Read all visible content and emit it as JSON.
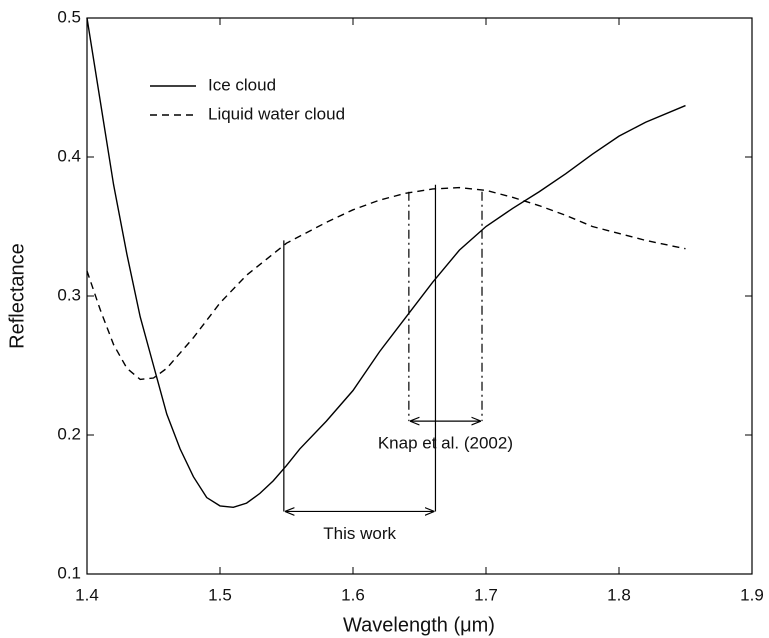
{
  "chart_data": {
    "type": "line",
    "x_label": "Wavelength (μm)",
    "y_label": "Reflectance",
    "xlim": [
      1.4,
      1.9
    ],
    "xticks": [
      1.4,
      1.5,
      1.6,
      1.7,
      1.8,
      1.9
    ],
    "ylim": [
      0.1,
      0.5
    ],
    "yticks": [
      0.1,
      0.2,
      0.3,
      0.4,
      0.5
    ],
    "legend": "upper-left",
    "series": [
      {
        "name": "Ice cloud",
        "color": "#000000",
        "line_style": "solid",
        "x": [
          1.4,
          1.41,
          1.42,
          1.43,
          1.44,
          1.45,
          1.46,
          1.47,
          1.48,
          1.49,
          1.5,
          1.51,
          1.52,
          1.53,
          1.54,
          1.55,
          1.56,
          1.58,
          1.6,
          1.62,
          1.64,
          1.66,
          1.68,
          1.7,
          1.72,
          1.74,
          1.76,
          1.78,
          1.8,
          1.82,
          1.85
        ],
        "values": [
          0.5,
          0.44,
          0.38,
          0.33,
          0.285,
          0.25,
          0.215,
          0.19,
          0.17,
          0.155,
          0.149,
          0.148,
          0.151,
          0.158,
          0.167,
          0.178,
          0.19,
          0.21,
          0.232,
          0.26,
          0.285,
          0.31,
          0.333,
          0.35,
          0.363,
          0.375,
          0.388,
          0.402,
          0.415,
          0.425,
          0.437
        ]
      },
      {
        "name": "Liquid water cloud",
        "color": "#000000",
        "line_style": "dashed",
        "x": [
          1.4,
          1.41,
          1.42,
          1.43,
          1.44,
          1.45,
          1.46,
          1.48,
          1.5,
          1.52,
          1.55,
          1.58,
          1.6,
          1.62,
          1.64,
          1.66,
          1.68,
          1.7,
          1.72,
          1.74,
          1.76,
          1.78,
          1.8,
          1.82,
          1.85
        ],
        "values": [
          0.318,
          0.29,
          0.265,
          0.248,
          0.24,
          0.241,
          0.248,
          0.27,
          0.295,
          0.315,
          0.338,
          0.353,
          0.362,
          0.369,
          0.374,
          0.377,
          0.378,
          0.376,
          0.371,
          0.365,
          0.358,
          0.35,
          0.345,
          0.34,
          0.334
        ]
      }
    ],
    "annotations": [
      {
        "label": "This work",
        "x": [
          1.548,
          1.662
        ],
        "ytop": [
          0.34,
          0.38
        ],
        "arrow_y": 0.145,
        "line_style": "solid"
      },
      {
        "label": "Knap et al. (2002)",
        "x": [
          1.642,
          1.697
        ],
        "ytop": [
          0.375,
          0.375
        ],
        "arrow_y": 0.21,
        "line_style": "dashdot"
      }
    ]
  }
}
